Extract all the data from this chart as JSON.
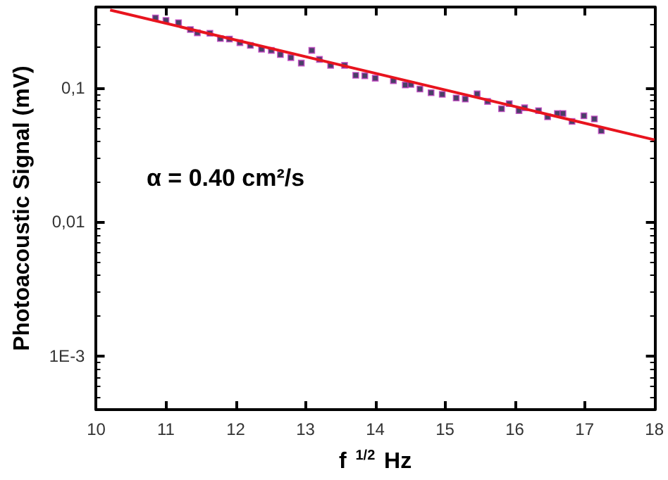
{
  "chart_data": {
    "type": "scatter",
    "xlabel": "f $^{1/2}$ Hz",
    "ylabel": "Photoacoustic Signal (mV)",
    "annotations": [
      "α = 0.40 cm²/s"
    ],
    "log": "y",
    "grid": false,
    "marker": "square",
    "xlim": [
      10,
      18
    ],
    "xticks": [
      10,
      11,
      12,
      13,
      14,
      15,
      16,
      17,
      18
    ],
    "ylim": [
      0.0004,
      0.4
    ],
    "yticks": [
      {
        "value": 0.001,
        "label": "1E-3"
      },
      {
        "value": 0.01,
        "label": "0,01"
      },
      {
        "value": 0.1,
        "label": "0,1"
      }
    ],
    "series": [
      {
        "color": "#1a1040",
        "x": [
          10.85,
          11.0,
          11.18,
          11.35,
          11.45,
          11.63,
          11.78,
          11.91,
          12.06,
          12.21,
          12.37,
          12.51,
          12.64,
          12.79,
          12.94,
          13.09,
          13.2,
          13.36,
          13.56,
          13.72,
          13.85,
          14.0,
          14.26,
          14.43,
          14.51,
          14.64,
          14.8,
          14.96,
          15.16,
          15.29,
          15.46,
          15.61,
          15.81,
          15.92,
          16.06,
          16.14,
          16.34,
          16.47,
          16.61,
          16.69,
          16.82,
          16.99,
          17.14,
          17.24
        ],
        "values": [
          0.332,
          0.318,
          0.306,
          0.272,
          0.257,
          0.255,
          0.233,
          0.231,
          0.217,
          0.207,
          0.194,
          0.19,
          0.177,
          0.168,
          0.153,
          0.19,
          0.163,
          0.147,
          0.147,
          0.124,
          0.123,
          0.118,
          0.113,
          0.105,
          0.106,
          0.098,
          0.092,
          0.0894,
          0.084,
          0.0825,
          0.0902,
          0.0792,
          0.0698,
          0.0763,
          0.0676,
          0.071,
          0.0676,
          0.0608,
          0.0644,
          0.0644,
          0.0562,
          0.0619,
          0.0586,
          0.0479
        ]
      },
      {
        "type": "line",
        "color": "#e8141e",
        "marker": "none",
        "x": [
          10.2,
          18
        ],
        "values": [
          0.38,
          0.041
        ]
      }
    ]
  }
}
